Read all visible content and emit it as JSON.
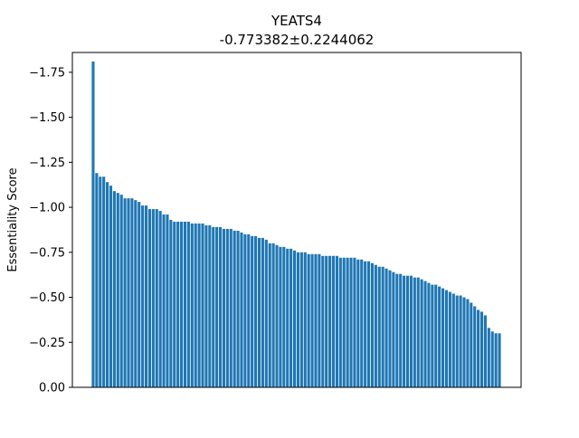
{
  "chart_data": {
    "type": "bar",
    "title": "YEATS4",
    "subtitle": "-0.773382±0.2244062",
    "xlabel": "",
    "ylabel": "Essentiality Score",
    "ylim": [
      0,
      -1.86
    ],
    "y_inverted": true,
    "yticks": [
      0.0,
      -0.25,
      -0.5,
      -0.75,
      -1.0,
      -1.25,
      -1.5,
      -1.75
    ],
    "ytick_labels": [
      "0.00",
      "−0.25",
      "−0.50",
      "−0.75",
      "−1.00",
      "−1.25",
      "−1.50",
      "−1.75"
    ],
    "xticks_shown": false,
    "grid": false,
    "legend": "none",
    "bar_color": "#1f77b4",
    "values": [
      -1.81,
      -1.19,
      -1.17,
      -1.17,
      -1.14,
      -1.12,
      -1.09,
      -1.08,
      -1.07,
      -1.05,
      -1.05,
      -1.05,
      -1.04,
      -1.03,
      -1.01,
      -1.01,
      -0.99,
      -0.99,
      -0.99,
      -0.98,
      -0.96,
      -0.96,
      -0.93,
      -0.92,
      -0.92,
      -0.92,
      -0.92,
      -0.92,
      -0.91,
      -0.91,
      -0.91,
      -0.91,
      -0.9,
      -0.9,
      -0.89,
      -0.89,
      -0.89,
      -0.88,
      -0.88,
      -0.88,
      -0.87,
      -0.87,
      -0.86,
      -0.85,
      -0.85,
      -0.84,
      -0.84,
      -0.83,
      -0.83,
      -0.82,
      -0.8,
      -0.8,
      -0.79,
      -0.78,
      -0.78,
      -0.77,
      -0.77,
      -0.76,
      -0.75,
      -0.75,
      -0.75,
      -0.74,
      -0.74,
      -0.74,
      -0.74,
      -0.73,
      -0.73,
      -0.73,
      -0.73,
      -0.73,
      -0.72,
      -0.72,
      -0.72,
      -0.72,
      -0.72,
      -0.71,
      -0.71,
      -0.7,
      -0.7,
      -0.69,
      -0.68,
      -0.67,
      -0.67,
      -0.66,
      -0.65,
      -0.64,
      -0.63,
      -0.63,
      -0.62,
      -0.62,
      -0.62,
      -0.61,
      -0.61,
      -0.6,
      -0.59,
      -0.58,
      -0.57,
      -0.57,
      -0.56,
      -0.55,
      -0.54,
      -0.53,
      -0.52,
      -0.51,
      -0.51,
      -0.5,
      -0.49,
      -0.47,
      -0.45,
      -0.43,
      -0.42,
      -0.4,
      -0.33,
      -0.31,
      -0.3,
      -0.3
    ]
  }
}
